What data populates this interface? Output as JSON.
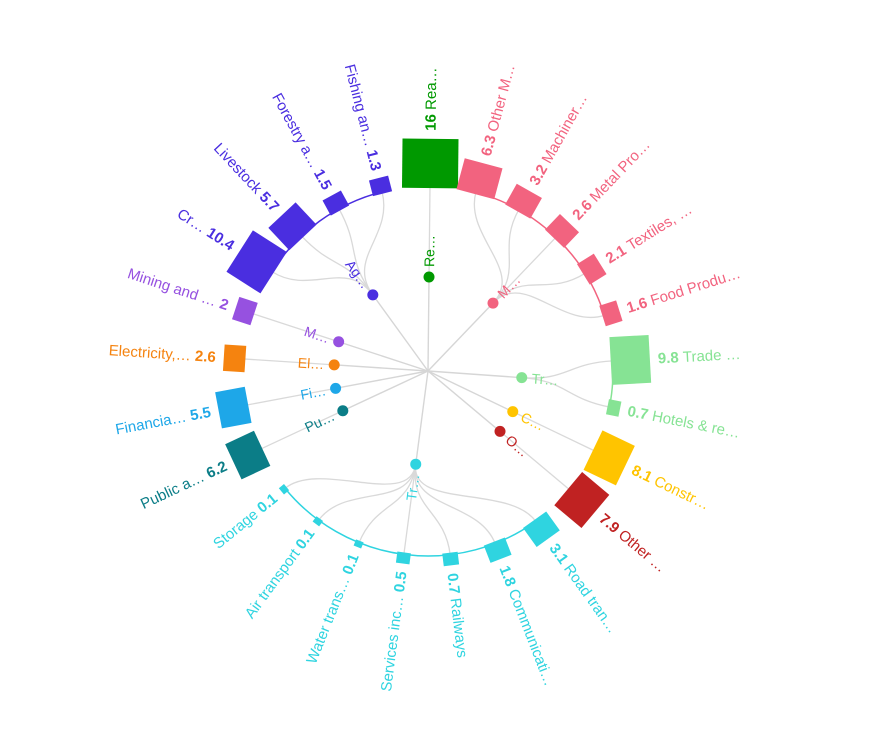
{
  "chart_data": {
    "type": "radial-tree",
    "groups": [
      {
        "name": "Re…",
        "color": "#009900",
        "leaves": [
          {
            "label": "Rea…",
            "value": 16
          }
        ]
      },
      {
        "name": "M…",
        "color": "#f2637f",
        "leaves": [
          {
            "label": "Other M…",
            "value": 6.3
          },
          {
            "label": "Machiner…",
            "value": 3.2
          },
          {
            "label": "Metal Pro…",
            "value": 2.6
          },
          {
            "label": "Textiles, …",
            "value": 2.1
          },
          {
            "label": "Food Produ…",
            "value": 1.6
          }
        ]
      },
      {
        "name": "Tr…",
        "color": "#86e394",
        "leaves": [
          {
            "label": "Trade …",
            "value": 9.8
          },
          {
            "label": "Hotels & re…",
            "value": 0.7
          }
        ]
      },
      {
        "name": "C…",
        "color": "#ffc400",
        "leaves": [
          {
            "label": "Constr…",
            "value": 8.1
          }
        ]
      },
      {
        "name": "O…",
        "color": "#c02222",
        "leaves": [
          {
            "label": "Other …",
            "value": 7.9
          }
        ]
      },
      {
        "name": "Tr…",
        "color": "#2fd4e0",
        "leaves": [
          {
            "label": "Road tran…",
            "value": 3.1
          },
          {
            "label": "Communicati…",
            "value": 1.8
          },
          {
            "label": "Railways",
            "value": 0.7
          },
          {
            "label": "Services inc…",
            "value": 0.5
          },
          {
            "label": "Water trans…",
            "value": 0.1
          },
          {
            "label": "Air transport",
            "value": 0.1
          },
          {
            "label": "Storage",
            "value": 0.1
          }
        ]
      },
      {
        "name": "Pu…",
        "color": "#0b7d87",
        "leaves": [
          {
            "label": "Public a…",
            "value": 6.2
          }
        ]
      },
      {
        "name": "Fi…",
        "color": "#1ea7e8",
        "leaves": [
          {
            "label": "Financia…",
            "value": 5.5
          }
        ]
      },
      {
        "name": "El…",
        "color": "#f5830f",
        "leaves": [
          {
            "label": "Electricity,…",
            "value": 2.6
          }
        ]
      },
      {
        "name": "M…",
        "color": "#9651e0",
        "leaves": [
          {
            "label": "Mining and …",
            "value": 2
          }
        ]
      },
      {
        "name": "Ag…",
        "color": "#4a2ee0",
        "leaves": [
          {
            "label": "Cr…",
            "value": 10.4
          },
          {
            "label": "Livestock",
            "value": 5.7
          },
          {
            "label": "Forestry a…",
            "value": 1.5
          },
          {
            "label": "Fishing an…",
            "value": 1.3
          }
        ]
      }
    ]
  }
}
